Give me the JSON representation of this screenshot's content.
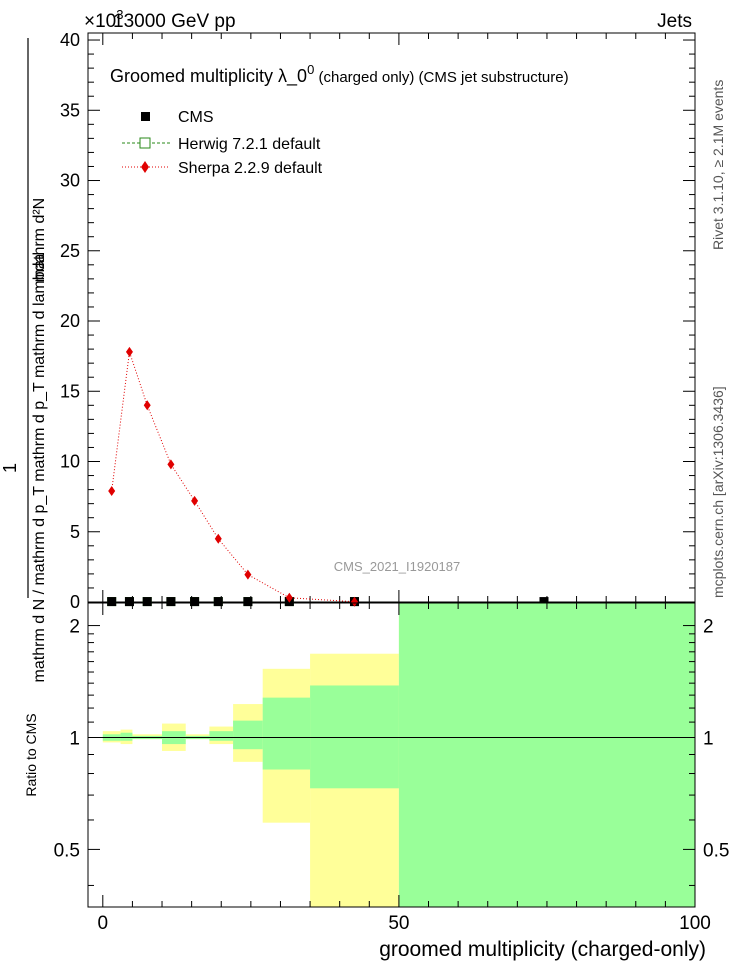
{
  "header": {
    "energy": "13000 GeV pp",
    "exponent": "×10",
    "exponent_power": "3",
    "category": "Jets"
  },
  "side_labels": {
    "rivet": "Rivet 3.1.10, ≥ 2.1M events",
    "mcplots": "mcplots.cern.ch [arXiv:1306.3436]"
  },
  "chart_data": [
    {
      "type": "line",
      "title_main": "Groomed multiplicity  λ_0",
      "title_sup": "0",
      "title_rest": " (charged only) (CMS jet substructure)",
      "analysis_id": "CMS_2021_I1920187",
      "ylabel_numerator": "1",
      "ylabel_denominator": "mathrm d N / mathrm d p_T mathrm d p_T mathrm d lambda",
      "ylabel_top": "mathrm d²N",
      "xlim": [
        -2.5,
        100
      ],
      "ylim": [
        0,
        40.5
      ],
      "y_ticks": [
        0,
        5,
        10,
        15,
        20,
        25,
        30,
        35,
        40
      ],
      "y_tick_labels": [
        "0",
        "5",
        "10",
        "15",
        "20",
        "25",
        "30",
        "35",
        "40"
      ],
      "legend": [
        {
          "name": "CMS",
          "marker": "square",
          "color": "#000000"
        },
        {
          "name": "Herwig 7.2.1 default",
          "marker": "open-square",
          "color": "#2a8a1a"
        },
        {
          "name": "Sherpa 2.2.9 default",
          "marker": "diamond",
          "color": "#e00000"
        }
      ],
      "series": [
        {
          "name": "CMS",
          "x": [
            1.5,
            4.5,
            7.5,
            11.5,
            15.5,
            19.5,
            24.5,
            31.5,
            42.5,
            74.5
          ],
          "y": [
            0.03,
            0.03,
            0.03,
            0.03,
            0.03,
            0.03,
            0.03,
            0.03,
            0.03,
            0.03
          ]
        },
        {
          "name": "Herwig 7.2.1 default",
          "x": [
            1.5,
            4.5,
            7.5,
            11.5,
            15.5,
            19.5,
            24.5,
            31.5,
            42.5
          ],
          "y": [
            0.03,
            0.03,
            0.03,
            0.03,
            0.03,
            0.03,
            0.03,
            0.03,
            0.03
          ]
        },
        {
          "name": "Sherpa 2.2.9 default",
          "x": [
            1.5,
            4.5,
            7.5,
            11.5,
            15.5,
            19.5,
            24.5,
            31.5,
            42.5
          ],
          "y": [
            7.9,
            17.8,
            14.0,
            9.8,
            7.2,
            4.5,
            1.95,
            0.3,
            0.02
          ]
        }
      ]
    },
    {
      "type": "area",
      "ylabel": "Ratio to CMS",
      "xlabel": "groomed multiplicity (charged-only)",
      "xlim": [
        -2.5,
        100
      ],
      "ylim": [
        0.35,
        2.3
      ],
      "x_ticks": [
        0,
        50,
        100
      ],
      "x_tick_labels": [
        "0",
        "50",
        "100"
      ],
      "y_ticks": [
        0.5,
        1,
        2
      ],
      "y_tick_labels": [
        "0.5",
        "1",
        "2"
      ],
      "reference_line": 1,
      "bins": [
        {
          "lo": 0,
          "hi": 3,
          "yellow": [
            0.97,
            1.04
          ],
          "green": [
            0.98,
            1.02
          ]
        },
        {
          "lo": 3,
          "hi": 5,
          "yellow": [
            0.96,
            1.05
          ],
          "green": [
            0.98,
            1.03
          ]
        },
        {
          "lo": 5,
          "hi": 10,
          "yellow": [
            0.99,
            1.02
          ],
          "green": [
            0.99,
            1.01
          ]
        },
        {
          "lo": 10,
          "hi": 14,
          "yellow": [
            0.92,
            1.09
          ],
          "green": [
            0.96,
            1.04
          ]
        },
        {
          "lo": 14,
          "hi": 18,
          "yellow": [
            0.99,
            1.02
          ],
          "green": [
            0.99,
            1.01
          ]
        },
        {
          "lo": 18,
          "hi": 22,
          "yellow": [
            0.96,
            1.07
          ],
          "green": [
            0.98,
            1.04
          ]
        },
        {
          "lo": 22,
          "hi": 27,
          "yellow": [
            0.86,
            1.23
          ],
          "green": [
            0.93,
            1.11
          ]
        },
        {
          "lo": 27,
          "hi": 35,
          "yellow": [
            0.59,
            1.53
          ],
          "green": [
            0.82,
            1.28
          ]
        },
        {
          "lo": 35,
          "hi": 50,
          "yellow": [
            0.35,
            1.68
          ],
          "green": [
            0.73,
            1.38
          ]
        },
        {
          "lo": 50,
          "hi": 100,
          "yellow": [
            0.35,
            2.3
          ],
          "green": [
            0.35,
            2.3
          ]
        }
      ]
    }
  ]
}
